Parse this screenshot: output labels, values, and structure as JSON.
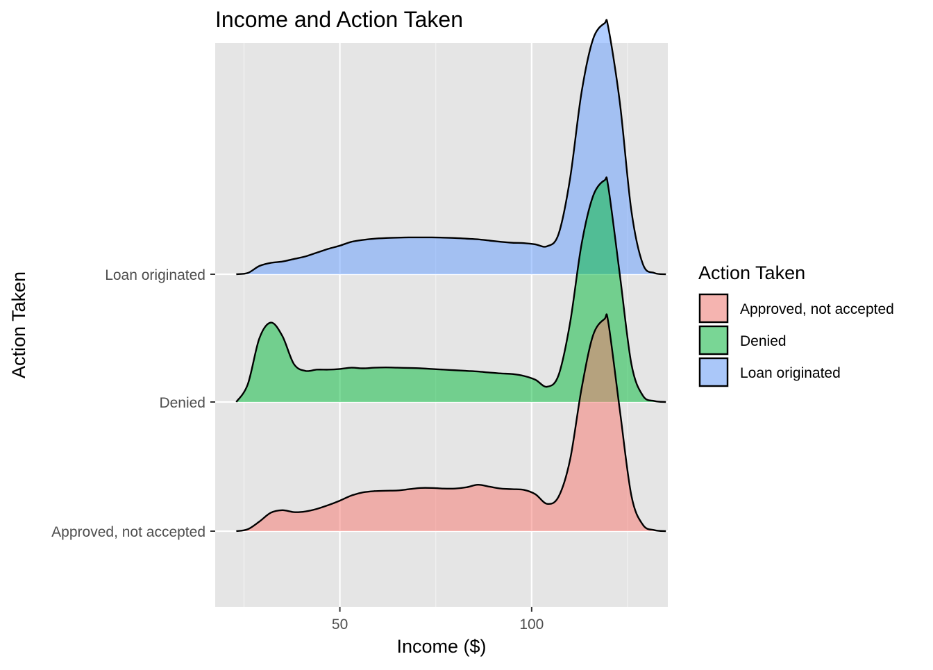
{
  "chart_data": {
    "type": "ridgeline",
    "title": "Income and Action Taken",
    "xlabel": "Income ($)",
    "ylabel": "Action Taken",
    "xlim": [
      17.5,
      135.5
    ],
    "x_ticks": [
      50,
      100
    ],
    "x_minor_ticks": [
      25,
      75,
      125
    ],
    "grid": true,
    "legend": {
      "title": "Action Taken",
      "position": "right",
      "entries": [
        {
          "label": "Approved, not accepted",
          "color": "#F8766D"
        },
        {
          "label": "Denied",
          "color": "#00BA38"
        },
        {
          "label": "Loan originated",
          "color": "#619CFF"
        }
      ]
    },
    "categories": [
      "Approved, not accepted",
      "Denied",
      "Loan originated"
    ],
    "x": [
      23,
      26,
      29,
      32,
      35,
      38,
      41,
      44,
      47,
      50,
      53,
      56,
      59,
      62,
      65,
      68,
      71,
      74,
      77,
      80,
      83,
      86,
      89,
      92,
      95,
      98,
      101,
      104,
      107,
      110,
      113,
      116,
      119,
      120,
      123,
      126,
      129,
      132,
      135
    ],
    "series": [
      {
        "name": "Approved, not accepted",
        "color": "#F8766D",
        "values": [
          0.0,
          0.015,
          0.075,
          0.145,
          0.165,
          0.15,
          0.155,
          0.175,
          0.205,
          0.24,
          0.28,
          0.305,
          0.315,
          0.318,
          0.32,
          0.33,
          0.34,
          0.34,
          0.335,
          0.335,
          0.345,
          0.365,
          0.35,
          0.335,
          0.33,
          0.325,
          0.29,
          0.215,
          0.27,
          0.56,
          1.12,
          1.54,
          1.67,
          1.64,
          0.95,
          0.28,
          0.05,
          0.008,
          0.0
        ]
      },
      {
        "name": "Denied",
        "color": "#00BA38",
        "values": [
          0.0,
          0.14,
          0.5,
          0.625,
          0.52,
          0.3,
          0.245,
          0.255,
          0.255,
          0.26,
          0.27,
          0.265,
          0.27,
          0.272,
          0.27,
          0.268,
          0.265,
          0.26,
          0.255,
          0.25,
          0.245,
          0.24,
          0.232,
          0.225,
          0.22,
          0.205,
          0.175,
          0.12,
          0.21,
          0.62,
          1.24,
          1.62,
          1.745,
          1.69,
          1.0,
          0.3,
          0.05,
          0.008,
          0.0
        ]
      },
      {
        "name": "Loan originated",
        "color": "#619CFF",
        "values": [
          0.0,
          0.01,
          0.065,
          0.09,
          0.1,
          0.12,
          0.14,
          0.17,
          0.2,
          0.225,
          0.255,
          0.27,
          0.28,
          0.285,
          0.288,
          0.29,
          0.29,
          0.29,
          0.288,
          0.285,
          0.28,
          0.275,
          0.265,
          0.255,
          0.248,
          0.245,
          0.235,
          0.22,
          0.315,
          0.75,
          1.43,
          1.85,
          1.975,
          1.94,
          1.35,
          0.5,
          0.08,
          0.01,
          0.0
        ]
      }
    ]
  }
}
